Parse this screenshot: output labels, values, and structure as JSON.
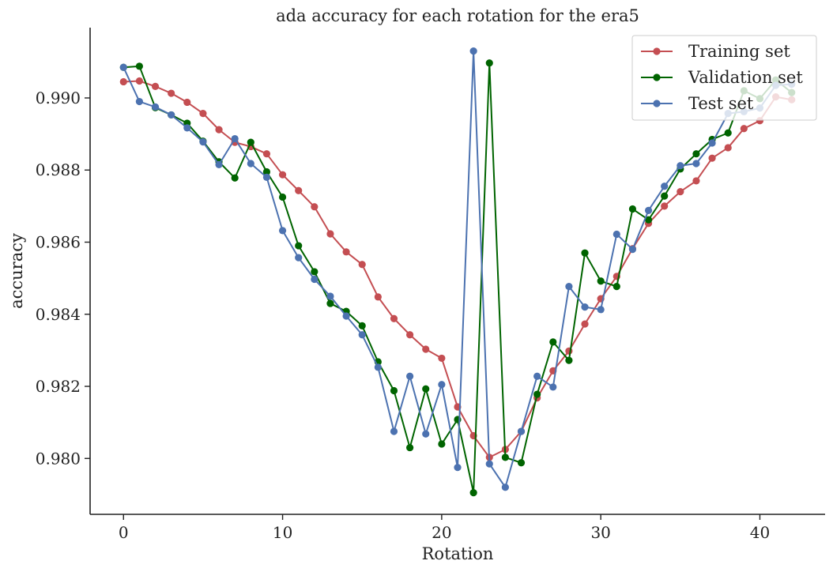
{
  "chart_data": {
    "type": "line",
    "title": "ada accuracy for each rotation for the era5",
    "xlabel": "Rotation",
    "ylabel": "accuracy",
    "xlim": [
      -2.1,
      44.1
    ],
    "ylim": [
      0.97845,
      0.99195
    ],
    "xticks": [
      0,
      10,
      20,
      30,
      40
    ],
    "yticks": [
      0.98,
      0.982,
      0.984,
      0.986,
      0.988,
      0.99
    ],
    "ytick_labels": [
      "0.980",
      "0.982",
      "0.984",
      "0.986",
      "0.988",
      "0.990"
    ],
    "grid": false,
    "legend_position": "top-right",
    "x": [
      0,
      1,
      2,
      3,
      4,
      5,
      6,
      7,
      8,
      9,
      10,
      11,
      12,
      13,
      14,
      15,
      16,
      17,
      18,
      19,
      20,
      21,
      22,
      23,
      24,
      25,
      26,
      27,
      28,
      29,
      30,
      31,
      32,
      33,
      34,
      35,
      36,
      37,
      38,
      39,
      40,
      41,
      42
    ],
    "series": [
      {
        "name": "Training set",
        "color": "#c44e52",
        "values": [
          0.99045,
          0.99047,
          0.99032,
          0.99013,
          0.98988,
          0.98957,
          0.98912,
          0.98877,
          0.98865,
          0.98845,
          0.98787,
          0.98743,
          0.98698,
          0.98623,
          0.98573,
          0.98538,
          0.98448,
          0.98388,
          0.98343,
          0.98303,
          0.98278,
          0.98143,
          0.98063,
          0.98003,
          0.98025,
          0.98075,
          0.98168,
          0.98243,
          0.98298,
          0.98373,
          0.98443,
          0.98505,
          0.98582,
          0.98652,
          0.987,
          0.9874,
          0.9877,
          0.98833,
          0.98862,
          0.98915,
          0.98937,
          0.99003,
          0.98995
        ]
      },
      {
        "name": "Validation set",
        "color": "#006400",
        "values": [
          0.99085,
          0.99088,
          0.98973,
          0.98953,
          0.9893,
          0.9888,
          0.98823,
          0.98778,
          0.98877,
          0.98795,
          0.98725,
          0.9859,
          0.98518,
          0.9843,
          0.98408,
          0.98368,
          0.98268,
          0.98188,
          0.9803,
          0.98193,
          0.9804,
          0.98108,
          0.97905,
          0.99097,
          0.98003,
          0.97988,
          0.98178,
          0.98323,
          0.98272,
          0.9857,
          0.98492,
          0.98477,
          0.98692,
          0.98662,
          0.98728,
          0.98803,
          0.98845,
          0.98885,
          0.98903,
          0.9902,
          0.98998,
          0.9905,
          0.99015
        ]
      },
      {
        "name": "Test set",
        "color": "#4c72b0",
        "values": [
          0.99085,
          0.9899,
          0.98975,
          0.98953,
          0.98917,
          0.98878,
          0.98815,
          0.98887,
          0.98818,
          0.9878,
          0.98632,
          0.98557,
          0.98497,
          0.9845,
          0.98395,
          0.98343,
          0.98253,
          0.98075,
          0.98228,
          0.98068,
          0.98205,
          0.97975,
          0.9913,
          0.97985,
          0.9792,
          0.98075,
          0.98228,
          0.98198,
          0.98477,
          0.9842,
          0.98413,
          0.98622,
          0.9858,
          0.98688,
          0.98755,
          0.98812,
          0.98818,
          0.98875,
          0.98957,
          0.98962,
          0.98972,
          0.99035,
          0.99038
        ]
      }
    ]
  }
}
